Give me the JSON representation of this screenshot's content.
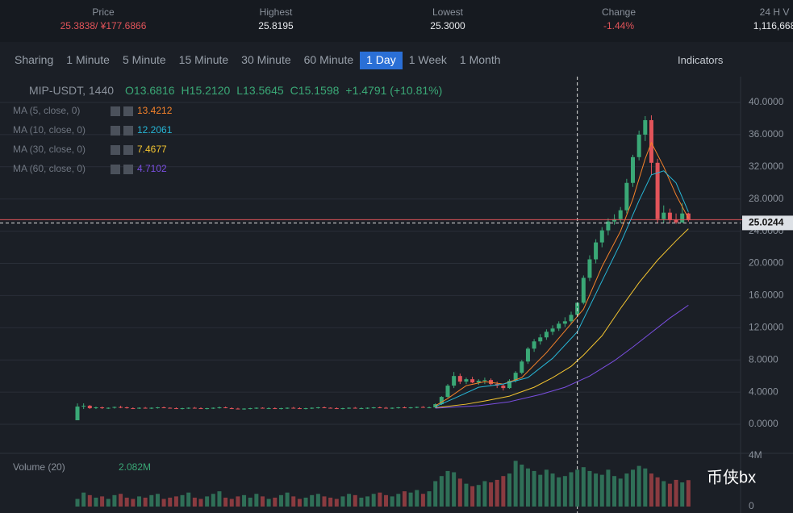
{
  "header": {
    "stats": [
      {
        "label": "Price",
        "value": "25.3838/ ¥177.6866",
        "tone": "down"
      },
      {
        "label": "Highest",
        "value": "25.8195",
        "tone": "plain"
      },
      {
        "label": "Lowest",
        "value": "25.3000",
        "tone": "plain"
      },
      {
        "label": "Change",
        "value": "-1.44%",
        "tone": "down"
      },
      {
        "label": "24 H V",
        "value": "1,116,668",
        "tone": "plain"
      }
    ]
  },
  "tabs": {
    "items": [
      "Sharing",
      "1 Minute",
      "5 Minute",
      "15 Minute",
      "30 Minute",
      "60 Minute",
      "1 Day",
      "1 Week",
      "1 Month"
    ],
    "active": 6,
    "indicators": "Indicators"
  },
  "info": {
    "symbol": "MIP-USDT, 1440",
    "open": "O13.6816",
    "high": "H15.2120",
    "low": "L13.5645",
    "close": "C15.1598",
    "change": "+1.4791 (+10.81%)"
  },
  "ma_legend": [
    {
      "label": "MA (5, close, 0)",
      "value": "13.4212",
      "color": "#f5822a"
    },
    {
      "label": "MA (10, close, 0)",
      "value": "12.2061",
      "color": "#27b6d6"
    },
    {
      "label": "MA (30, close, 0)",
      "value": "7.4677",
      "color": "#f3c430"
    },
    {
      "label": "MA (60, close, 0)",
      "value": "4.7102",
      "color": "#7a4ee0"
    }
  ],
  "chart_data": {
    "type": "candlestick",
    "up_color": "#3aa876",
    "down_color": "#e2545a",
    "ylim": [
      -4,
      41.5
    ],
    "yticks": [
      {
        "value": 40,
        "label": "40.0000"
      },
      {
        "value": 36,
        "label": "36.0000"
      },
      {
        "value": 32,
        "label": "32.0000"
      },
      {
        "value": 28,
        "label": "28.0000"
      },
      {
        "value": 24,
        "label": "24.0000"
      },
      {
        "value": 20,
        "label": "20.0000"
      },
      {
        "value": 16,
        "label": "16.0000"
      },
      {
        "value": 12,
        "label": "12.0000"
      },
      {
        "value": 8,
        "label": "8.0000"
      },
      {
        "value": 4,
        "label": "4.0000"
      },
      {
        "value": 0,
        "label": "0.0000"
      }
    ],
    "grid": true,
    "crosshair": {
      "x": 81,
      "price": 25.0244,
      "label": "25.0244"
    },
    "candles": [
      [
        0.5,
        2.6,
        0.5,
        2.2
      ],
      [
        2.2,
        2.6,
        1.9,
        2.3
      ],
      [
        2.3,
        2.4,
        1.9,
        2.0
      ],
      [
        2.0,
        2.2,
        1.9,
        2.1
      ],
      [
        2.1,
        2.2,
        1.9,
        2.0
      ],
      [
        2.0,
        2.1,
        1.9,
        2.05
      ],
      [
        2.05,
        2.2,
        1.95,
        2.15
      ],
      [
        2.15,
        2.3,
        2.0,
        2.1
      ],
      [
        2.1,
        2.2,
        1.95,
        2.0
      ],
      [
        2.0,
        2.1,
        1.9,
        1.95
      ],
      [
        1.95,
        2.1,
        1.9,
        2.05
      ],
      [
        2.05,
        2.15,
        1.95,
        2.0
      ],
      [
        2.0,
        2.1,
        1.9,
        2.05
      ],
      [
        2.05,
        2.15,
        1.95,
        2.1
      ],
      [
        2.1,
        2.2,
        2.0,
        2.05
      ],
      [
        2.05,
        2.1,
        1.95,
        2.0
      ],
      [
        2.0,
        2.1,
        1.9,
        1.95
      ],
      [
        1.95,
        2.05,
        1.85,
        2.0
      ],
      [
        2.0,
        2.1,
        1.9,
        2.05
      ],
      [
        2.05,
        2.15,
        1.95,
        2.0
      ],
      [
        2.0,
        2.1,
        1.9,
        1.95
      ],
      [
        1.95,
        2.05,
        1.85,
        2.0
      ],
      [
        2.0,
        2.1,
        1.9,
        2.05
      ],
      [
        2.05,
        2.2,
        1.95,
        2.1
      ],
      [
        2.1,
        2.2,
        2.0,
        2.0
      ],
      [
        2.0,
        2.1,
        1.9,
        1.95
      ],
      [
        1.95,
        2.05,
        1.85,
        1.9
      ],
      [
        1.9,
        2.0,
        1.8,
        1.95
      ],
      [
        1.95,
        2.05,
        1.85,
        2.0
      ],
      [
        2.0,
        2.1,
        1.9,
        2.05
      ],
      [
        2.05,
        2.1,
        1.95,
        2.0
      ],
      [
        2.0,
        2.1,
        1.9,
        2.0
      ],
      [
        2.0,
        2.1,
        1.9,
        1.95
      ],
      [
        1.95,
        2.05,
        1.85,
        2.0
      ],
      [
        2.0,
        2.1,
        1.9,
        2.05
      ],
      [
        2.05,
        2.15,
        1.95,
        2.0
      ],
      [
        2.0,
        2.1,
        1.9,
        1.95
      ],
      [
        1.95,
        2.05,
        1.85,
        2.0
      ],
      [
        2.0,
        2.1,
        1.9,
        2.05
      ],
      [
        2.05,
        2.15,
        1.95,
        2.1
      ],
      [
        2.1,
        2.2,
        2.0,
        2.05
      ],
      [
        2.05,
        2.1,
        1.95,
        2.0
      ],
      [
        2.0,
        2.1,
        1.9,
        1.95
      ],
      [
        1.95,
        2.05,
        1.85,
        2.0
      ],
      [
        2.0,
        2.1,
        1.9,
        2.05
      ],
      [
        2.05,
        2.15,
        1.95,
        2.0
      ],
      [
        2.0,
        2.1,
        1.9,
        2.0
      ],
      [
        2.0,
        2.1,
        1.9,
        2.05
      ],
      [
        2.05,
        2.15,
        1.95,
        2.1
      ],
      [
        2.1,
        2.2,
        2.0,
        2.05
      ],
      [
        2.05,
        2.15,
        1.95,
        2.0
      ],
      [
        2.0,
        2.1,
        1.9,
        2.05
      ],
      [
        2.05,
        2.15,
        1.95,
        2.1
      ],
      [
        2.1,
        2.2,
        2.0,
        2.05
      ],
      [
        2.05,
        2.15,
        1.95,
        2.1
      ],
      [
        2.1,
        2.2,
        2.0,
        2.15
      ],
      [
        2.15,
        2.25,
        2.05,
        2.1
      ],
      [
        2.1,
        2.2,
        2.0,
        2.1
      ],
      [
        2.1,
        2.6,
        2.0,
        2.5
      ],
      [
        2.5,
        3.5,
        2.4,
        3.4
      ],
      [
        3.4,
        5.0,
        3.3,
        4.8
      ],
      [
        4.8,
        6.5,
        4.5,
        6.0
      ],
      [
        6.0,
        6.3,
        5.0,
        5.3
      ],
      [
        5.3,
        5.8,
        5.0,
        5.6
      ],
      [
        5.6,
        5.9,
        5.1,
        5.2
      ],
      [
        5.2,
        5.6,
        4.9,
        5.4
      ],
      [
        5.4,
        5.8,
        5.0,
        5.5
      ],
      [
        5.5,
        5.7,
        4.8,
        5.0
      ],
      [
        5.0,
        5.3,
        4.5,
        4.8
      ],
      [
        4.8,
        5.0,
        4.2,
        4.5
      ],
      [
        4.5,
        5.6,
        4.4,
        5.4
      ],
      [
        5.4,
        6.6,
        5.2,
        6.4
      ],
      [
        6.4,
        8.0,
        6.2,
        7.8
      ],
      [
        7.8,
        9.6,
        7.5,
        9.4
      ],
      [
        9.4,
        10.6,
        9.0,
        10.3
      ],
      [
        10.3,
        11.2,
        9.9,
        10.8
      ],
      [
        10.8,
        11.8,
        10.5,
        11.5
      ],
      [
        11.5,
        12.3,
        11.1,
        11.9
      ],
      [
        11.9,
        12.8,
        11.6,
        12.5
      ],
      [
        12.5,
        13.3,
        12.1,
        12.8
      ],
      [
        12.8,
        14.0,
        12.4,
        13.6
      ],
      [
        13.6,
        15.2,
        13.5,
        15.1
      ],
      [
        15.1,
        18.5,
        14.9,
        18.2
      ],
      [
        18.2,
        21.0,
        17.8,
        20.5
      ],
      [
        20.5,
        23.0,
        20.0,
        22.6
      ],
      [
        22.6,
        24.5,
        22.0,
        24.1
      ],
      [
        24.1,
        25.6,
        23.5,
        25.2
      ],
      [
        25.2,
        26.1,
        24.8,
        25.5
      ],
      [
        25.5,
        27.0,
        25.0,
        26.6
      ],
      [
        26.6,
        30.5,
        26.2,
        30.0
      ],
      [
        30.0,
        33.5,
        29.5,
        33.2
      ],
      [
        33.2,
        36.5,
        32.8,
        36.0
      ],
      [
        36.0,
        38.3,
        35.2,
        37.8
      ],
      [
        37.8,
        38.4,
        31.0,
        32.5
      ],
      [
        32.5,
        33.0,
        25.0,
        25.5
      ],
      [
        25.5,
        27.2,
        25.0,
        26.3
      ],
      [
        26.3,
        26.8,
        25.0,
        25.4
      ],
      [
        25.4,
        26.2,
        24.9,
        25.1
      ],
      [
        25.1,
        27.5,
        25.0,
        26.2
      ],
      [
        26.2,
        26.3,
        25.2,
        25.38
      ]
    ],
    "ma_series": [
      {
        "name": "MA5",
        "color": "#f5822a",
        "x": [
          58,
          60,
          63,
          66,
          69,
          72,
          76,
          79,
          82,
          85,
          88,
          90,
          92,
          93,
          95,
          97,
          99
        ],
        "values": [
          2.3,
          3.2,
          4.8,
          5.3,
          5.0,
          5.8,
          8.9,
          11.6,
          14.3,
          19.6,
          24.0,
          28.0,
          33.0,
          35.0,
          32.0,
          28.5,
          25.6
        ]
      },
      {
        "name": "MA10",
        "color": "#27b6d6",
        "x": [
          58,
          61,
          65,
          69,
          73,
          77,
          81,
          85,
          88,
          91,
          93,
          95,
          97,
          99
        ],
        "values": [
          2.2,
          3.2,
          4.6,
          5.0,
          5.8,
          8.2,
          11.5,
          17.8,
          22.5,
          27.8,
          31.0,
          31.5,
          30.0,
          26.4
        ]
      },
      {
        "name": "MA30",
        "color": "#f3c430",
        "x": [
          58,
          63,
          66,
          70,
          74,
          77,
          80,
          82,
          85,
          88,
          91,
          94,
          97,
          99
        ],
        "values": [
          2.05,
          2.5,
          2.9,
          3.5,
          4.6,
          5.8,
          7.2,
          8.6,
          11.0,
          14.4,
          17.6,
          20.4,
          22.8,
          24.3
        ]
      },
      {
        "name": "MA60",
        "color": "#7a4ee0",
        "x": [
          58,
          65,
          70,
          75,
          79,
          83,
          87,
          90,
          93,
          96,
          99
        ],
        "values": [
          2.0,
          2.3,
          2.8,
          3.7,
          4.6,
          6.0,
          7.9,
          9.6,
          11.4,
          13.2,
          14.8
        ]
      }
    ],
    "volume": {
      "label": "Volume (20)",
      "value": "2.082M",
      "ylim": [
        0,
        4
      ],
      "yticks": [
        {
          "value": 4,
          "label": "4M"
        },
        0
      ],
      "values": [
        0.6,
        1.1,
        0.9,
        0.7,
        0.8,
        0.6,
        0.9,
        1.0,
        0.7,
        0.6,
        0.8,
        0.7,
        0.9,
        1.0,
        0.6,
        0.7,
        0.8,
        0.9,
        1.1,
        0.7,
        0.6,
        0.8,
        1.0,
        1.2,
        0.7,
        0.6,
        0.8,
        0.9,
        0.7,
        1.0,
        0.8,
        0.6,
        0.7,
        0.9,
        1.1,
        0.8,
        0.6,
        0.7,
        0.9,
        1.0,
        0.8,
        0.7,
        0.6,
        0.8,
        1.0,
        0.9,
        0.7,
        0.8,
        1.0,
        1.1,
        0.9,
        0.8,
        1.0,
        1.2,
        1.1,
        1.3,
        1.0,
        1.2,
        2.0,
        2.4,
        2.8,
        2.7,
        2.2,
        1.8,
        1.6,
        1.7,
        2.0,
        1.9,
        2.1,
        2.4,
        2.6,
        3.6,
        3.3,
        3.0,
        2.8,
        2.5,
        2.9,
        2.6,
        2.3,
        2.4,
        2.7,
        2.9,
        3.1,
        2.8,
        2.6,
        2.5,
        2.9,
        2.4,
        2.2,
        2.6,
        2.9,
        3.2,
        3.0,
        2.6,
        2.3,
        2.0,
        1.8,
        2.1,
        1.9,
        2.08
      ]
    }
  },
  "watermark": "币侠bx"
}
